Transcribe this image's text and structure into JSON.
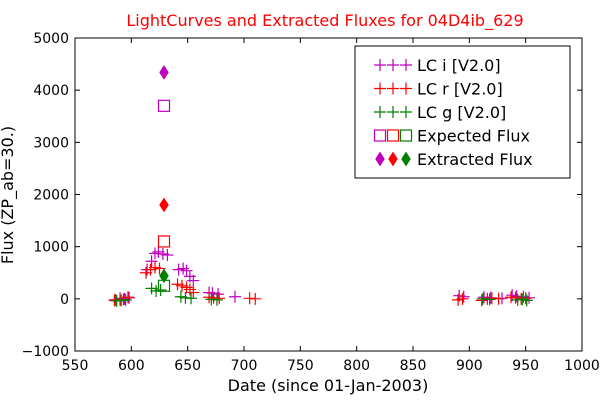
{
  "chart_data": {
    "type": "scatter",
    "title": "LightCurves and Extracted Fluxes for 04D4ib_629",
    "xlabel": "Date (since 01-Jan-2003)",
    "ylabel": "Flux (ZP_ab=30.)",
    "xlim": [
      550,
      1000
    ],
    "ylim": [
      -1000,
      5000
    ],
    "xticks": [
      550,
      600,
      650,
      700,
      750,
      800,
      850,
      900,
      950,
      1000
    ],
    "yticks": [
      -1000,
      0,
      1000,
      2000,
      3000,
      4000,
      5000
    ],
    "x_tick_labels": [
      "550",
      "600",
      "650",
      "700",
      "750",
      "800",
      "850",
      "900",
      "950",
      "1000"
    ],
    "y_tick_labels": [
      "−1000",
      "0",
      "1000",
      "2000",
      "3000",
      "4000",
      "5000"
    ],
    "grid": false,
    "legend_position": "top-right",
    "series": [
      {
        "name": "LC i [V2.0]",
        "marker": "plus",
        "color": "#bf00bf",
        "legend_glyph": "+++",
        "points": [
          [
            586,
            -20
          ],
          [
            590,
            10
          ],
          [
            594,
            0
          ],
          [
            598,
            20
          ],
          [
            614,
            560
          ],
          [
            618,
            720
          ],
          [
            621,
            870
          ],
          [
            624,
            900
          ],
          [
            628,
            860
          ],
          [
            632,
            840
          ],
          [
            642,
            560
          ],
          [
            646,
            580
          ],
          [
            649,
            540
          ],
          [
            652,
            430
          ],
          [
            655,
            350
          ],
          [
            669,
            120
          ],
          [
            672,
            110
          ],
          [
            677,
            90
          ],
          [
            692,
            40
          ],
          [
            891,
            60
          ],
          [
            895,
            40
          ],
          [
            913,
            30
          ],
          [
            919,
            20
          ],
          [
            929,
            10
          ],
          [
            938,
            70
          ],
          [
            942,
            50
          ],
          [
            948,
            40
          ],
          [
            953,
            20
          ]
        ]
      },
      {
        "name": "LC r [V2.0]",
        "marker": "plus",
        "color": "#ff0000",
        "legend_glyph": "+++",
        "points": [
          [
            585,
            -30
          ],
          [
            590,
            -20
          ],
          [
            593,
            -10
          ],
          [
            597,
            30
          ],
          [
            613,
            500
          ],
          [
            617,
            560
          ],
          [
            621,
            600
          ],
          [
            625,
            580
          ],
          [
            641,
            280
          ],
          [
            645,
            250
          ],
          [
            649,
            220
          ],
          [
            652,
            180
          ],
          [
            655,
            120
          ],
          [
            669,
            30
          ],
          [
            673,
            20
          ],
          [
            678,
            10
          ],
          [
            705,
            10
          ],
          [
            710,
            0
          ],
          [
            890,
            -20
          ],
          [
            894,
            0
          ],
          [
            911,
            -30
          ],
          [
            916,
            0
          ],
          [
            920,
            10
          ],
          [
            926,
            0
          ],
          [
            937,
            30
          ],
          [
            941,
            20
          ],
          [
            946,
            0
          ],
          [
            950,
            10
          ]
        ]
      },
      {
        "name": "LC g [V2.0]",
        "marker": "plus",
        "color": "#008000",
        "legend_glyph": "+++",
        "points": [
          [
            587,
            -40
          ],
          [
            591,
            -30
          ],
          [
            595,
            -20
          ],
          [
            618,
            200
          ],
          [
            622,
            150
          ],
          [
            626,
            170
          ],
          [
            644,
            40
          ],
          [
            648,
            20
          ],
          [
            653,
            10
          ],
          [
            671,
            -10
          ],
          [
            676,
            -20
          ],
          [
            912,
            0
          ],
          [
            918,
            -10
          ],
          [
            943,
            -20
          ],
          [
            947,
            -10
          ],
          [
            951,
            -30
          ]
        ]
      },
      {
        "name": "Expected Flux",
        "marker": "square",
        "color": "#bf00bf",
        "legend_glyph": "□□□",
        "points": [
          [
            629,
            3700
          ],
          [
            629,
            1100
          ],
          [
            629,
            250
          ]
        ],
        "point_colors": [
          "#bf00bf",
          "#ff0000",
          "#008000"
        ]
      },
      {
        "name": "Extracted Flux",
        "marker": "diamond",
        "color": "#bf00bf",
        "legend_glyph": "◆◆◆",
        "points": [
          [
            629,
            4340
          ],
          [
            629,
            1800
          ],
          [
            629,
            440
          ]
        ],
        "point_colors": [
          "#bf00bf",
          "#ff0000",
          "#008000"
        ]
      }
    ]
  }
}
